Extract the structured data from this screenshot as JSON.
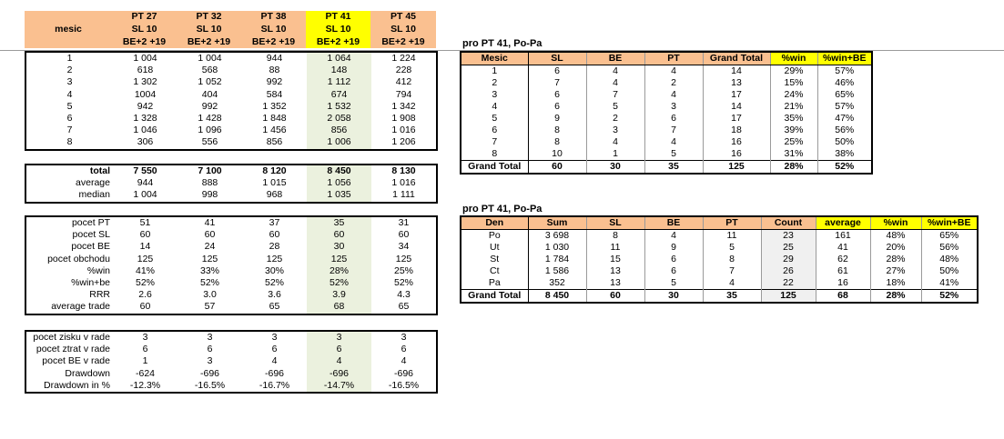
{
  "main": {
    "header": {
      "label": "mesic",
      "columns": [
        {
          "l1": "PT 27",
          "l2": "SL 10",
          "l3": "BE+2 +19"
        },
        {
          "l1": "PT 32",
          "l2": "SL 10",
          "l3": "BE+2 +19"
        },
        {
          "l1": "PT 38",
          "l2": "SL 10",
          "l3": "BE+2 +19"
        },
        {
          "l1": "PT 41",
          "l2": "SL 10",
          "l3": "BE+2 +19"
        },
        {
          "l1": "PT 45",
          "l2": "SL 10",
          "l3": "BE+2 +19"
        }
      ]
    },
    "months": [
      {
        "m": "1",
        "v": [
          "1 004",
          "1 004",
          "944",
          "1 064",
          "1 224"
        ]
      },
      {
        "m": "2",
        "v": [
          "618",
          "568",
          "88",
          "148",
          "228"
        ]
      },
      {
        "m": "3",
        "v": [
          "1 302",
          "1 052",
          "992",
          "1 112",
          "412"
        ]
      },
      {
        "m": "4",
        "v": [
          "1004",
          "404",
          "584",
          "674",
          "794"
        ]
      },
      {
        "m": "5",
        "v": [
          "942",
          "992",
          "1 352",
          "1 532",
          "1 342"
        ]
      },
      {
        "m": "6",
        "v": [
          "1 328",
          "1 428",
          "1 848",
          "2 058",
          "1 908"
        ]
      },
      {
        "m": "7",
        "v": [
          "1 046",
          "1 096",
          "1 456",
          "856",
          "1 016"
        ]
      },
      {
        "m": "8",
        "v": [
          "306",
          "556",
          "856",
          "1 006",
          "1 206"
        ]
      }
    ],
    "summary": [
      {
        "label": "total",
        "v": [
          "7 550",
          "7 100",
          "8 120",
          "8 450",
          "8 130"
        ]
      },
      {
        "label": "average",
        "v": [
          "944",
          "888",
          "1 015",
          "1 056",
          "1 016"
        ]
      },
      {
        "label": "median",
        "v": [
          "1 004",
          "998",
          "968",
          "1 035",
          "1 111"
        ]
      }
    ],
    "stats": [
      {
        "label": "pocet PT",
        "v": [
          "51",
          "41",
          "37",
          "35",
          "31"
        ]
      },
      {
        "label": "pocet SL",
        "v": [
          "60",
          "60",
          "60",
          "60",
          "60"
        ]
      },
      {
        "label": "pocet BE",
        "v": [
          "14",
          "24",
          "28",
          "30",
          "34"
        ]
      },
      {
        "label": "pocet obchodu",
        "v": [
          "125",
          "125",
          "125",
          "125",
          "125"
        ]
      },
      {
        "label": "%win",
        "v": [
          "41%",
          "33%",
          "30%",
          "28%",
          "25%"
        ]
      },
      {
        "label": "%win+be",
        "v": [
          "52%",
          "52%",
          "52%",
          "52%",
          "52%"
        ]
      },
      {
        "label": "RRR",
        "v": [
          "2.6",
          "3.0",
          "3.6",
          "3.9",
          "4.3"
        ]
      },
      {
        "label": "average trade",
        "v": [
          "60",
          "57",
          "65",
          "68",
          "65"
        ]
      }
    ],
    "streaks": [
      {
        "label": "pocet zisku v rade",
        "v": [
          "3",
          "3",
          "3",
          "3",
          "3"
        ]
      },
      {
        "label": "pocet ztrat v rade",
        "v": [
          "6",
          "6",
          "6",
          "6",
          "6"
        ]
      },
      {
        "label": "pocet BE v rade",
        "v": [
          "1",
          "3",
          "4",
          "4",
          "4"
        ]
      },
      {
        "label": "Drawdown",
        "v": [
          "-624",
          "-696",
          "-696",
          "-696",
          "-696"
        ]
      },
      {
        "label": "Drawdown in %",
        "v": [
          "-12.3%",
          "-16.5%",
          "-16.7%",
          "-14.7%",
          "-16.5%"
        ]
      }
    ]
  },
  "pivot1": {
    "title": "pro PT 41, Po-Pa",
    "headers": [
      "Mesic",
      "SL",
      "BE",
      "PT",
      "Grand Total",
      "%win",
      "%win+BE"
    ],
    "rows": [
      [
        "1",
        "6",
        "4",
        "4",
        "14",
        "29%",
        "57%"
      ],
      [
        "2",
        "7",
        "4",
        "2",
        "13",
        "15%",
        "46%"
      ],
      [
        "3",
        "6",
        "7",
        "4",
        "17",
        "24%",
        "65%"
      ],
      [
        "4",
        "6",
        "5",
        "3",
        "14",
        "21%",
        "57%"
      ],
      [
        "5",
        "9",
        "2",
        "6",
        "17",
        "35%",
        "47%"
      ],
      [
        "6",
        "8",
        "3",
        "7",
        "18",
        "39%",
        "56%"
      ],
      [
        "7",
        "8",
        "4",
        "4",
        "16",
        "25%",
        "50%"
      ],
      [
        "8",
        "10",
        "1",
        "5",
        "16",
        "31%",
        "38%"
      ]
    ],
    "total": [
      "Grand Total",
      "60",
      "30",
      "35",
      "125",
      "28%",
      "52%"
    ]
  },
  "pivot2": {
    "title": "pro PT 41, Po-Pa",
    "headers": [
      "Den",
      "Sum",
      "SL",
      "BE",
      "PT",
      "Count",
      "average",
      "%win",
      "%win+BE"
    ],
    "rows": [
      [
        "Po",
        "3 698",
        "8",
        "4",
        "11",
        "23",
        "161",
        "48%",
        "65%"
      ],
      [
        "Ut",
        "1 030",
        "11",
        "9",
        "5",
        "25",
        "41",
        "20%",
        "56%"
      ],
      [
        "St",
        "1 784",
        "15",
        "6",
        "8",
        "29",
        "62",
        "28%",
        "48%"
      ],
      [
        "Ct",
        "1 586",
        "13",
        "6",
        "7",
        "26",
        "61",
        "27%",
        "50%"
      ],
      [
        "Pa",
        "352",
        "13",
        "5",
        "4",
        "22",
        "16",
        "18%",
        "41%"
      ]
    ],
    "total": [
      "Grand Total",
      "8 450",
      "60",
      "30",
      "35",
      "125",
      "68",
      "28%",
      "52%"
    ]
  },
  "colors": {
    "header_orange": "#fac090",
    "highlight_yellow": "#ffff00",
    "highlight_green": "#ebf1de"
  }
}
